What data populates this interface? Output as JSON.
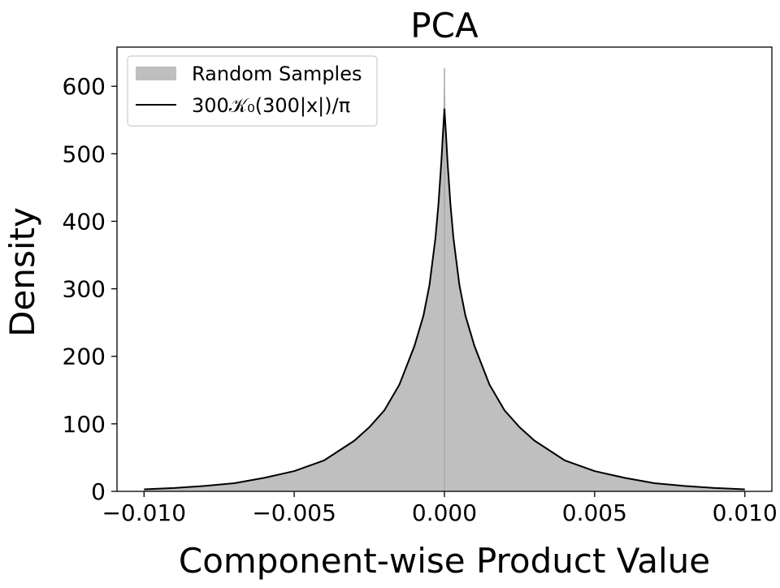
{
  "chart_data": {
    "type": "area",
    "title": "PCA",
    "xlabel": "Component-wise Product Value",
    "ylabel": "Density",
    "xlim": [
      -0.0109,
      0.0109
    ],
    "ylim": [
      0,
      658
    ],
    "x_ticks": [
      -0.01,
      -0.005,
      0.0,
      0.005,
      0.01
    ],
    "x_tick_labels": [
      "−0.010",
      "−0.005",
      "0.000",
      "0.005",
      "0.010"
    ],
    "y_ticks": [
      0,
      100,
      200,
      300,
      400,
      500,
      600
    ],
    "y_tick_labels": [
      "0",
      "100",
      "200",
      "300",
      "400",
      "500",
      "600"
    ],
    "grid": false,
    "legend_position": "top-left",
    "series": [
      {
        "name": "Random Samples",
        "kind": "histogram",
        "color": "#bfbfbf",
        "x": [
          -0.01,
          -0.009,
          -0.008,
          -0.007,
          -0.006,
          -0.005,
          -0.004,
          -0.003,
          -0.0025,
          -0.002,
          -0.0015,
          -0.001,
          -0.0007,
          -0.0005,
          -0.0003,
          -0.0002,
          -0.0001,
          -5e-05,
          0.0,
          5e-05,
          0.0001,
          0.0002,
          0.0003,
          0.0005,
          0.0007,
          0.001,
          0.0015,
          0.002,
          0.0025,
          0.003,
          0.004,
          0.005,
          0.006,
          0.007,
          0.008,
          0.009,
          0.01
        ],
        "values": [
          3,
          5,
          8,
          12,
          20,
          30,
          46,
          75,
          95,
          122,
          160,
          220,
          265,
          310,
          380,
          430,
          500,
          540,
          627,
          540,
          500,
          430,
          380,
          310,
          265,
          220,
          160,
          122,
          95,
          75,
          46,
          30,
          20,
          12,
          8,
          5,
          3
        ]
      },
      {
        "name": "300𝒦₀(300|x|)/π",
        "kind": "line",
        "color": "#000000",
        "x": [
          -0.01,
          -0.009,
          -0.008,
          -0.007,
          -0.006,
          -0.005,
          -0.004,
          -0.003,
          -0.0025,
          -0.002,
          -0.0015,
          -0.001,
          -0.0007,
          -0.0005,
          -0.0003,
          -0.0002,
          -0.0001,
          -5e-05,
          0.0,
          5e-05,
          0.0001,
          0.0002,
          0.0003,
          0.0005,
          0.0007,
          0.001,
          0.0015,
          0.002,
          0.0025,
          0.003,
          0.004,
          0.005,
          0.006,
          0.007,
          0.008,
          0.009,
          0.01
        ],
        "values": [
          3,
          5,
          8,
          12,
          20,
          30,
          46,
          75,
          95,
          120,
          158,
          215,
          260,
          305,
          375,
          425,
          490,
          530,
          566,
          530,
          490,
          425,
          375,
          305,
          260,
          215,
          158,
          120,
          95,
          75,
          46,
          30,
          20,
          12,
          8,
          5,
          3
        ]
      }
    ]
  }
}
